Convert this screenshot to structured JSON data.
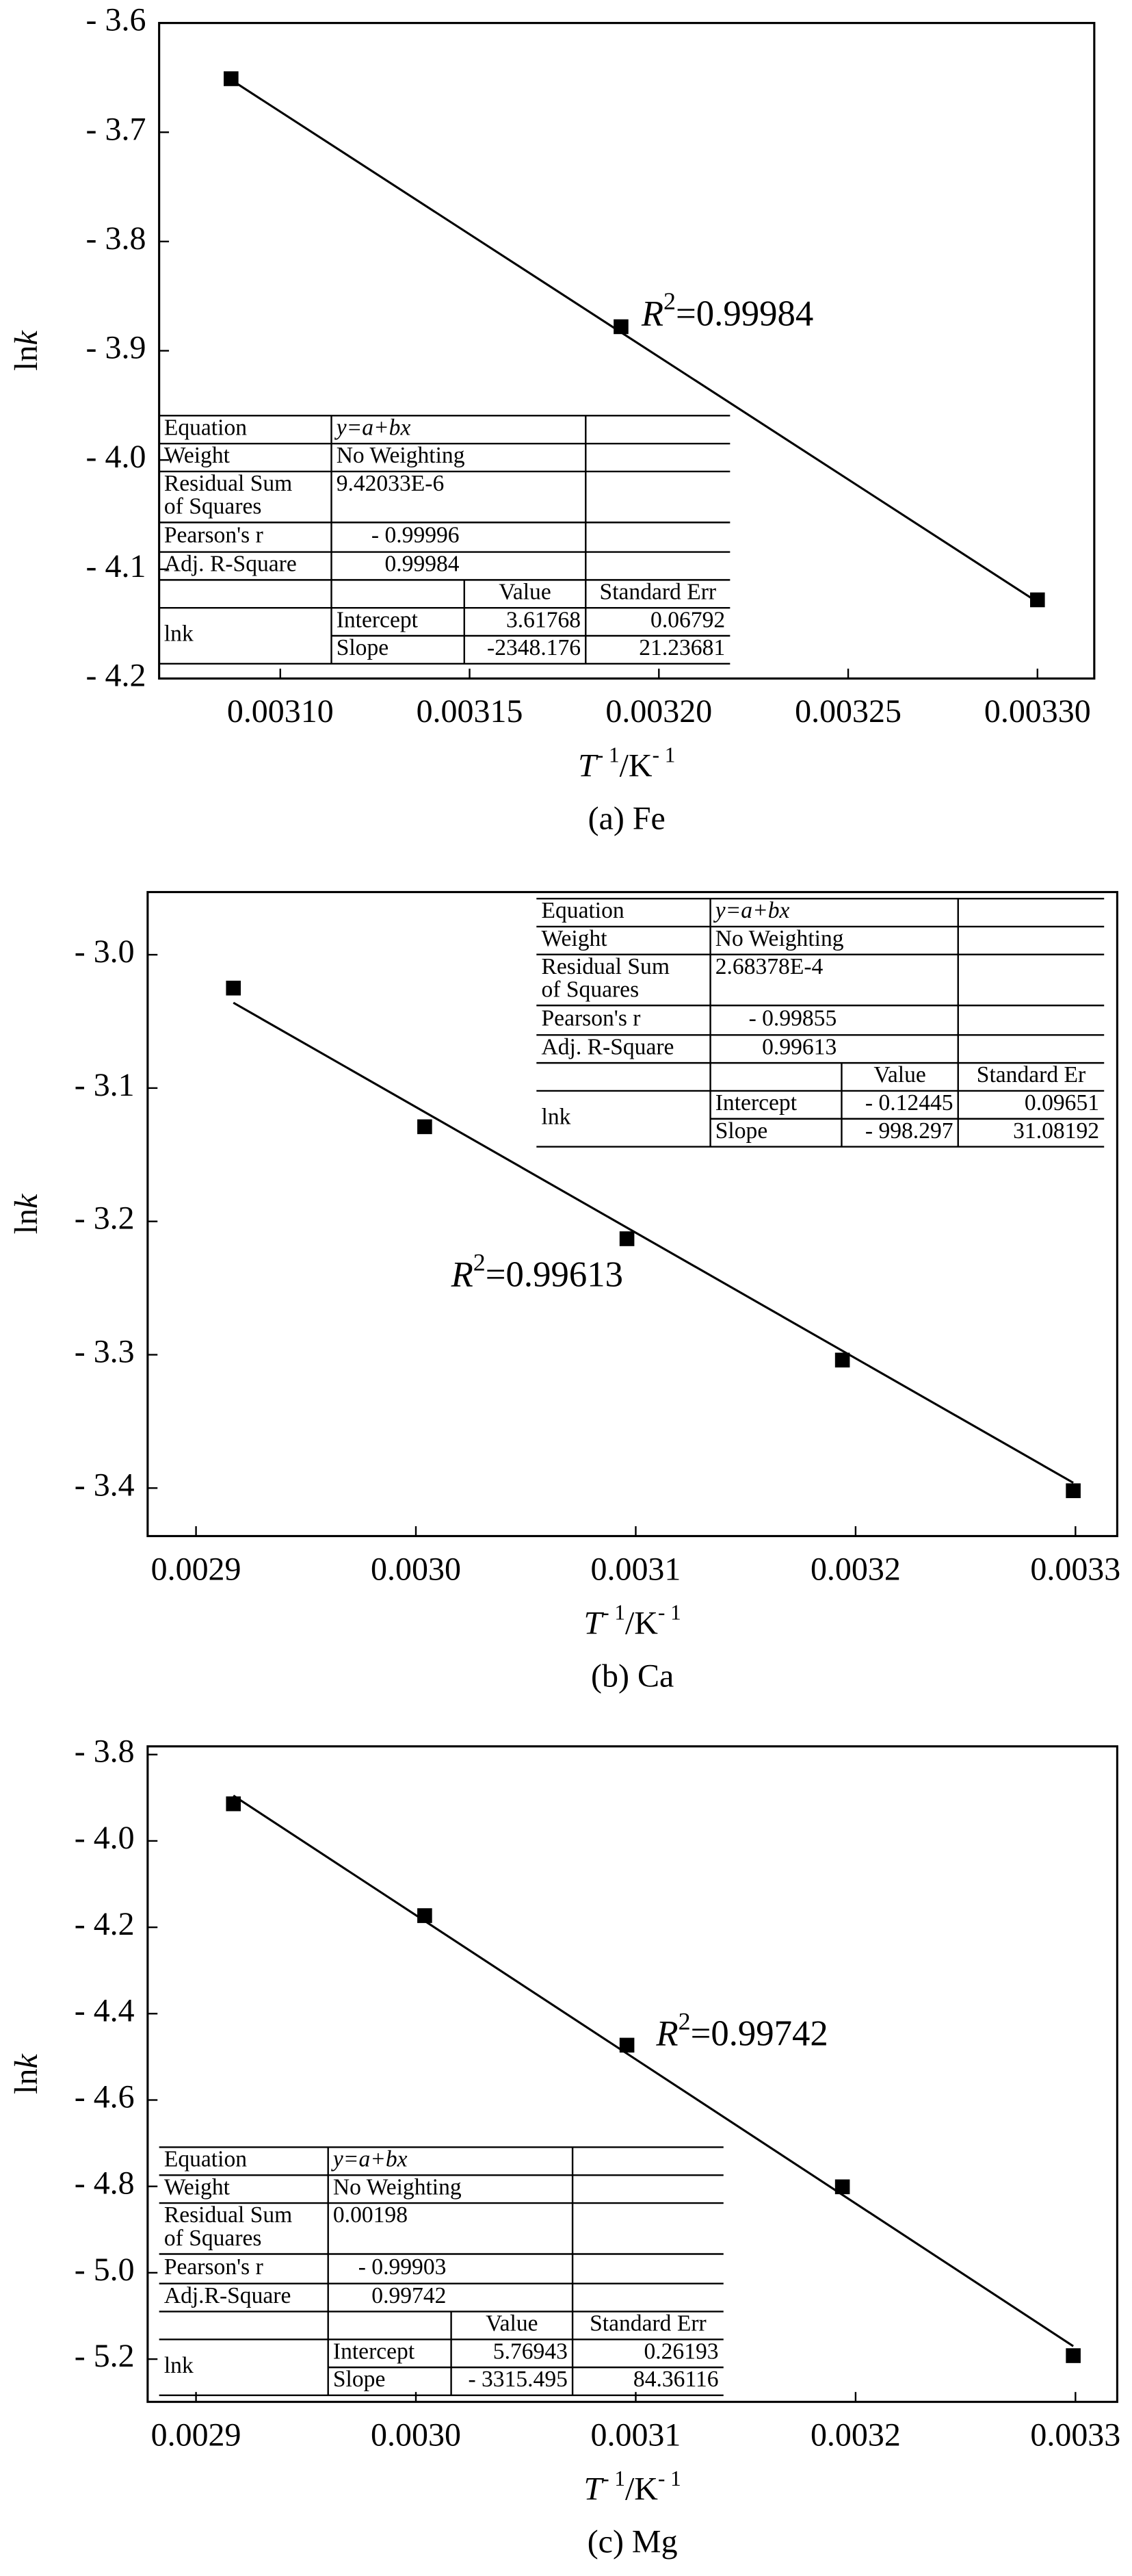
{
  "chart_data": [
    {
      "type": "scatter",
      "caption": "(a) Fe",
      "x_label": {
        "symbol": "T",
        "sup1": "- 1",
        "unit": "/K",
        "sup2": "- 1"
      },
      "y_label": {
        "base": "ln",
        "italic": "k"
      },
      "xlim": [
        0.003068,
        0.003315
      ],
      "ylim": [
        -4.2,
        -3.6
      ],
      "xticks": [
        {
          "value": 0.0031,
          "label": "0.00310"
        },
        0.00315,
        {
          "value": 0.0032,
          "label": "0.00320"
        },
        0.00325,
        {
          "value": 0.0033,
          "label": "0.00330"
        }
      ],
      "yticks": [
        {
          "value": -3.6,
          "label": "- 3.6"
        },
        {
          "value": -3.7,
          "label": "- 3.7"
        },
        {
          "value": -3.8,
          "label": "- 3.8"
        },
        {
          "value": -3.9,
          "label": "- 3.9"
        },
        {
          "value": -4.0,
          "label": "- 4.0"
        },
        {
          "value": -4.1,
          "label": "- 4.1"
        },
        {
          "value": -4.2,
          "label": "- 4.2"
        }
      ],
      "series": [
        {
          "type": "scatter",
          "color": "#000000",
          "x": [
            0.003087,
            0.00319,
            0.0033
          ],
          "values": [
            -3.651,
            -3.878,
            -4.128
          ]
        },
        {
          "type": "line",
          "color": "#000000",
          "x": [
            0.003087,
            0.0033
          ],
          "values": [
            -3.652,
            -4.13
          ]
        }
      ],
      "annotation": {
        "symbol": "R",
        "sup": "2",
        "text": "=0.99984"
      },
      "fit_table": {
        "stats": [
          [
            "Equation",
            "y=a+bx"
          ],
          [
            "Weight",
            "No Weighting"
          ],
          [
            [
              "Residual Sum",
              "of Squares"
            ],
            "9.42033E-6"
          ],
          [
            "Pearson's r",
            "- 0.99996"
          ],
          [
            "Adj. R-Square",
            "0.99984"
          ]
        ],
        "header": [
          "Value",
          "Standard Err"
        ],
        "group": "lnk",
        "params": [
          [
            "Intercept",
            "3.61768",
            "0.06792"
          ],
          [
            "Slope",
            "-2348.176",
            "21.23681"
          ]
        ]
      }
    },
    {
      "type": "scatter",
      "caption": "(b) Ca",
      "x_label": {
        "symbol": "T",
        "sup1": "- 1",
        "unit": "/K",
        "sup2": "- 1"
      },
      "y_label": {
        "base": "ln",
        "italic": "k"
      },
      "xlim": [
        0.002878,
        0.003319
      ],
      "ylim": [
        -3.436,
        -2.953
      ],
      "xticks": [
        0.0029,
        {
          "value": 0.003,
          "label": "0.0030"
        },
        0.0031,
        0.0032,
        0.0033
      ],
      "yticks": [
        {
          "value": -3.0,
          "label": "- 3.0"
        },
        {
          "value": -3.1,
          "label": "- 3.1"
        },
        {
          "value": -3.2,
          "label": "- 3.2"
        },
        {
          "value": -3.3,
          "label": "- 3.3"
        },
        {
          "value": -3.4,
          "label": "- 3.4"
        }
      ],
      "series": [
        {
          "type": "scatter",
          "color": "#000000",
          "x": [
            0.002917,
            0.003004,
            0.003096,
            0.003194,
            0.003299
          ],
          "values": [
            -3.025,
            -3.129,
            -3.213,
            -3.304,
            -3.402
          ]
        },
        {
          "type": "line",
          "color": "#000000",
          "x": [
            0.002917,
            0.003299
          ],
          "values": [
            -3.036,
            -3.396
          ]
        }
      ],
      "annotation": {
        "symbol": "R",
        "sup": "2",
        "text": "=0.99613"
      },
      "fit_table": {
        "stats": [
          [
            "Equation",
            "y=a+bx"
          ],
          [
            "Weight",
            "No Weighting"
          ],
          [
            [
              "Residual Sum",
              "of Squares"
            ],
            "2.68378E-4"
          ],
          [
            "Pearson's r",
            "- 0.99855"
          ],
          [
            "Adj. R-Square",
            "0.99613"
          ]
        ],
        "header": [
          "Value",
          "Standard Er"
        ],
        "group": "lnk",
        "params": [
          [
            "Intercept",
            "- 0.12445",
            "0.09651"
          ],
          [
            "Slope",
            "- 998.297",
            "31.08192"
          ]
        ]
      }
    },
    {
      "type": "scatter",
      "caption": "(c) Mg",
      "x_label": {
        "symbol": "T",
        "sup1": "- 1",
        "unit": "/K",
        "sup2": "- 1"
      },
      "y_label": {
        "base": "ln",
        "italic": "k"
      },
      "xlim": [
        0.002878,
        0.003319
      ],
      "ylim": [
        -5.299,
        -3.781
      ],
      "xticks": [
        0.0029,
        {
          "value": 0.003,
          "label": "0.0030"
        },
        0.0031,
        0.0032,
        0.0033
      ],
      "yticks": [
        {
          "value": -3.8,
          "label": "- 3.8"
        },
        {
          "value": -4.0,
          "label": "- 4.0"
        },
        {
          "value": -4.2,
          "label": "- 4.2"
        },
        {
          "value": -4.4,
          "label": "- 4.4"
        },
        {
          "value": -4.6,
          "label": "- 4.6"
        },
        {
          "value": -4.8,
          "label": "- 4.8"
        },
        {
          "value": -5.0,
          "label": "- 5.0"
        },
        {
          "value": -5.2,
          "label": "- 5.2"
        }
      ],
      "series": [
        {
          "type": "scatter",
          "color": "#000000",
          "x": [
            0.002917,
            0.003004,
            0.003096,
            0.003194,
            0.003299
          ],
          "values": [
            -3.914,
            -4.173,
            -4.473,
            -4.801,
            -5.192
          ]
        },
        {
          "type": "line",
          "color": "#000000",
          "x": [
            0.002917,
            0.003299
          ],
          "values": [
            -3.895,
            -5.17
          ]
        }
      ],
      "annotation": {
        "symbol": "R",
        "sup": "2",
        "text": "=0.99742"
      },
      "fit_table": {
        "stats": [
          [
            "Equation",
            "y=a+bx"
          ],
          [
            "Weight",
            "No Weighting"
          ],
          [
            [
              "Residual Sum",
              "of Squares"
            ],
            "0.00198"
          ],
          [
            "Pearson's r",
            "- 0.99903"
          ],
          [
            "Adj.R-Square",
            "0.99742"
          ]
        ],
        "header": [
          "Value",
          "Standard Err"
        ],
        "group": "lnk",
        "params": [
          [
            "Intercept",
            "5.76943",
            "0.26193"
          ],
          [
            "Slope",
            "- 3315.495",
            "84.36116"
          ]
        ]
      }
    }
  ]
}
